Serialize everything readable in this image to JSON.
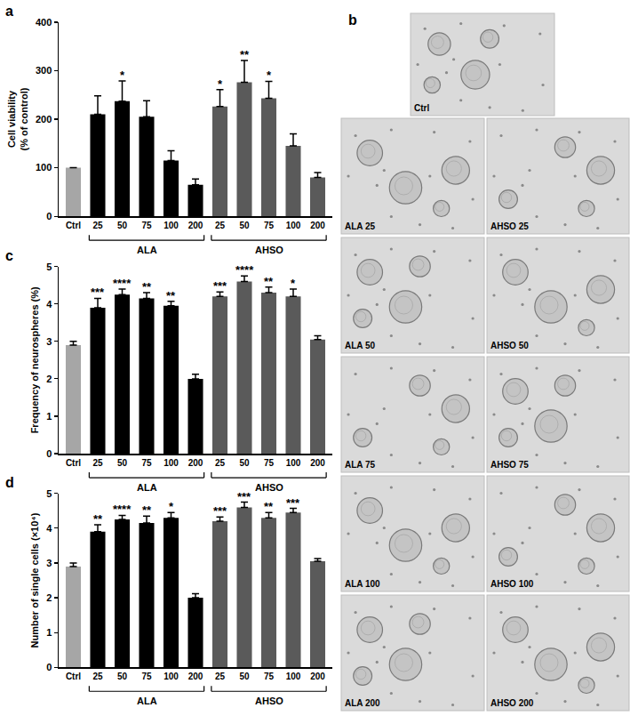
{
  "chart_data": [
    {
      "type": "bar",
      "title": "a",
      "y_label": "Cell viability\n(% of control)",
      "categories": [
        "Ctrl",
        "25",
        "50",
        "75",
        "100",
        "200",
        "25",
        "50",
        "75",
        "100",
        "200"
      ],
      "ylim": [
        0,
        400
      ],
      "yticks": [
        0,
        100,
        200,
        300,
        400
      ],
      "grid": false,
      "series": [
        {
          "name": "Ctrl",
          "color": "#a6a6a6",
          "values": [
            100,
            null,
            null,
            null,
            null,
            null,
            null,
            null,
            null,
            null,
            null
          ],
          "errors": [
            0,
            null,
            null,
            null,
            null,
            null,
            null,
            null,
            null,
            null,
            null
          ],
          "significance": [
            null,
            null,
            null,
            null,
            null,
            null,
            null,
            null,
            null,
            null,
            null
          ]
        },
        {
          "name": "ALA",
          "color": "#000000",
          "values": [
            null,
            210,
            237,
            205,
            115,
            65,
            null,
            null,
            null,
            null,
            null
          ],
          "errors": [
            null,
            38,
            42,
            33,
            20,
            12,
            null,
            null,
            null,
            null,
            null
          ],
          "significance": [
            null,
            null,
            "*",
            null,
            null,
            null,
            null,
            null,
            null,
            null,
            null
          ]
        },
        {
          "name": "AHSO",
          "color": "#5a5a5a",
          "values": [
            null,
            null,
            null,
            null,
            null,
            null,
            226,
            276,
            243,
            145,
            80
          ],
          "errors": [
            null,
            null,
            null,
            null,
            null,
            null,
            35,
            45,
            35,
            25,
            10
          ],
          "significance": [
            null,
            null,
            null,
            null,
            null,
            null,
            "*",
            "**",
            "*",
            null,
            null
          ]
        }
      ]
    },
    {
      "type": "bar",
      "title": "c",
      "y_label": "Frequency of neurospheres (%)",
      "categories": [
        "Ctrl",
        "25",
        "50",
        "75",
        "100",
        "200",
        "25",
        "50",
        "75",
        "100",
        "200"
      ],
      "ylim": [
        0,
        5
      ],
      "yticks": [
        0,
        1,
        2,
        3,
        4,
        5
      ],
      "grid": false,
      "series": [
        {
          "name": "Ctrl",
          "color": "#a6a6a6",
          "values": [
            2.9,
            null,
            null,
            null,
            null,
            null,
            null,
            null,
            null,
            null,
            null
          ],
          "errors": [
            0.1,
            null,
            null,
            null,
            null,
            null,
            null,
            null,
            null,
            null,
            null
          ],
          "significance": [
            null,
            null,
            null,
            null,
            null,
            null,
            null,
            null,
            null,
            null,
            null
          ]
        },
        {
          "name": "ALA",
          "color": "#000000",
          "values": [
            null,
            3.9,
            4.25,
            4.15,
            3.95,
            2.0,
            null,
            null,
            null,
            null,
            null
          ],
          "errors": [
            null,
            0.25,
            0.15,
            0.15,
            0.12,
            0.12,
            null,
            null,
            null,
            null,
            null
          ],
          "significance": [
            null,
            "***",
            "****",
            "**",
            "**",
            null,
            null,
            null,
            null,
            null,
            null
          ]
        },
        {
          "name": "AHSO",
          "color": "#5a5a5a",
          "values": [
            null,
            null,
            null,
            null,
            null,
            null,
            4.2,
            4.6,
            4.3,
            4.2,
            3.05
          ],
          "errors": [
            null,
            null,
            null,
            null,
            null,
            null,
            0.12,
            0.15,
            0.15,
            0.2,
            0.1
          ],
          "significance": [
            null,
            null,
            null,
            null,
            null,
            null,
            "***",
            "****",
            "**",
            "*",
            null
          ]
        }
      ]
    },
    {
      "type": "bar",
      "title": "d",
      "y_label": "Number of single cells (×10⁴)",
      "categories": [
        "Ctrl",
        "25",
        "50",
        "75",
        "100",
        "200",
        "25",
        "50",
        "75",
        "100",
        "200"
      ],
      "ylim": [
        0,
        5
      ],
      "yticks": [
        0,
        1,
        2,
        3,
        4,
        5
      ],
      "grid": false,
      "series": [
        {
          "name": "Ctrl",
          "color": "#a6a6a6",
          "values": [
            2.9,
            null,
            null,
            null,
            null,
            null,
            null,
            null,
            null,
            null,
            null
          ],
          "errors": [
            0.1,
            null,
            null,
            null,
            null,
            null,
            null,
            null,
            null,
            null,
            null
          ],
          "significance": [
            null,
            null,
            null,
            null,
            null,
            null,
            null,
            null,
            null,
            null,
            null
          ]
        },
        {
          "name": "ALA",
          "color": "#000000",
          "values": [
            null,
            3.9,
            4.25,
            4.15,
            4.3,
            2.0,
            null,
            null,
            null,
            null,
            null
          ],
          "errors": [
            null,
            0.2,
            0.12,
            0.2,
            0.15,
            0.12,
            null,
            null,
            null,
            null,
            null
          ],
          "significance": [
            null,
            "**",
            "****",
            "**",
            "*",
            null,
            null,
            null,
            null,
            null,
            null
          ]
        },
        {
          "name": "AHSO",
          "color": "#5a5a5a",
          "values": [
            null,
            null,
            null,
            null,
            null,
            null,
            4.2,
            4.6,
            4.3,
            4.45,
            3.05
          ],
          "errors": [
            null,
            null,
            null,
            null,
            null,
            null,
            0.12,
            0.15,
            0.15,
            0.12,
            0.08
          ],
          "significance": [
            null,
            null,
            null,
            null,
            null,
            null,
            "***",
            "***",
            "**",
            "***",
            null
          ]
        }
      ]
    }
  ],
  "panel_b": {
    "title": "b",
    "images": [
      "Ctrl",
      "ALA 25",
      "AHSO 25",
      "ALA 50",
      "AHSO 50",
      "ALA 75",
      "AHSO 75",
      "ALA 100",
      "AHSO 100",
      "ALA 200",
      "AHSO 200"
    ]
  }
}
